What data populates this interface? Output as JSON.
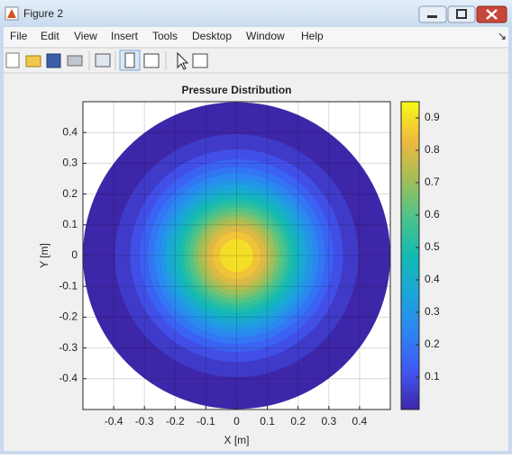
{
  "window": {
    "title": "Figure 2",
    "menu": [
      "File",
      "Edit",
      "View",
      "Insert",
      "Tools",
      "Desktop",
      "Window",
      "Help"
    ]
  },
  "chart_data": {
    "type": "contour",
    "title": "Pressure Distribution",
    "x_label": "X [m]",
    "y_label": "Y [m]",
    "xlim": [
      -0.5,
      0.5
    ],
    "ylim": [
      -0.5,
      0.5
    ],
    "xticks": [
      -0.4,
      -0.3,
      -0.2,
      -0.1,
      0,
      0.1,
      0.2,
      0.3,
      0.4
    ],
    "yticks": [
      -0.4,
      -0.3,
      -0.2,
      -0.1,
      0,
      0.1,
      0.2,
      0.3,
      0.4
    ],
    "grid": true,
    "clim": [
      0,
      0.95
    ],
    "cticks": [
      0.1,
      0.2,
      0.3,
      0.4,
      0.5,
      0.6,
      0.7,
      0.8,
      0.9
    ],
    "colormap": [
      "#3e26a8",
      "#4157f3",
      "#2c84f3",
      "#1ba6da",
      "#13bab1",
      "#4cc38a",
      "#a5be57",
      "#f0b93e",
      "#f9fb15"
    ],
    "contours": [
      {
        "level": 0,
        "radius": 0.5
      },
      {
        "level": 0.05,
        "radius": 0.396
      },
      {
        "level": 0.1,
        "radius": 0.346
      },
      {
        "level": 0.15,
        "radius": 0.314
      },
      {
        "level": 0.2,
        "radius": 0.288
      },
      {
        "level": 0.25,
        "radius": 0.267
      },
      {
        "level": 0.3,
        "radius": 0.248
      },
      {
        "level": 0.35,
        "radius": 0.231
      },
      {
        "level": 0.4,
        "radius": 0.215
      },
      {
        "level": 0.45,
        "radius": 0.2
      },
      {
        "level": 0.5,
        "radius": 0.185
      },
      {
        "level": 0.55,
        "radius": 0.171
      },
      {
        "level": 0.6,
        "radius": 0.157
      },
      {
        "level": 0.65,
        "radius": 0.142
      },
      {
        "level": 0.7,
        "radius": 0.128
      },
      {
        "level": 0.75,
        "radius": 0.112
      },
      {
        "level": 0.8,
        "radius": 0.096
      },
      {
        "level": 0.85,
        "radius": 0.077
      },
      {
        "level": 0.9,
        "radius": 0.054
      }
    ]
  }
}
